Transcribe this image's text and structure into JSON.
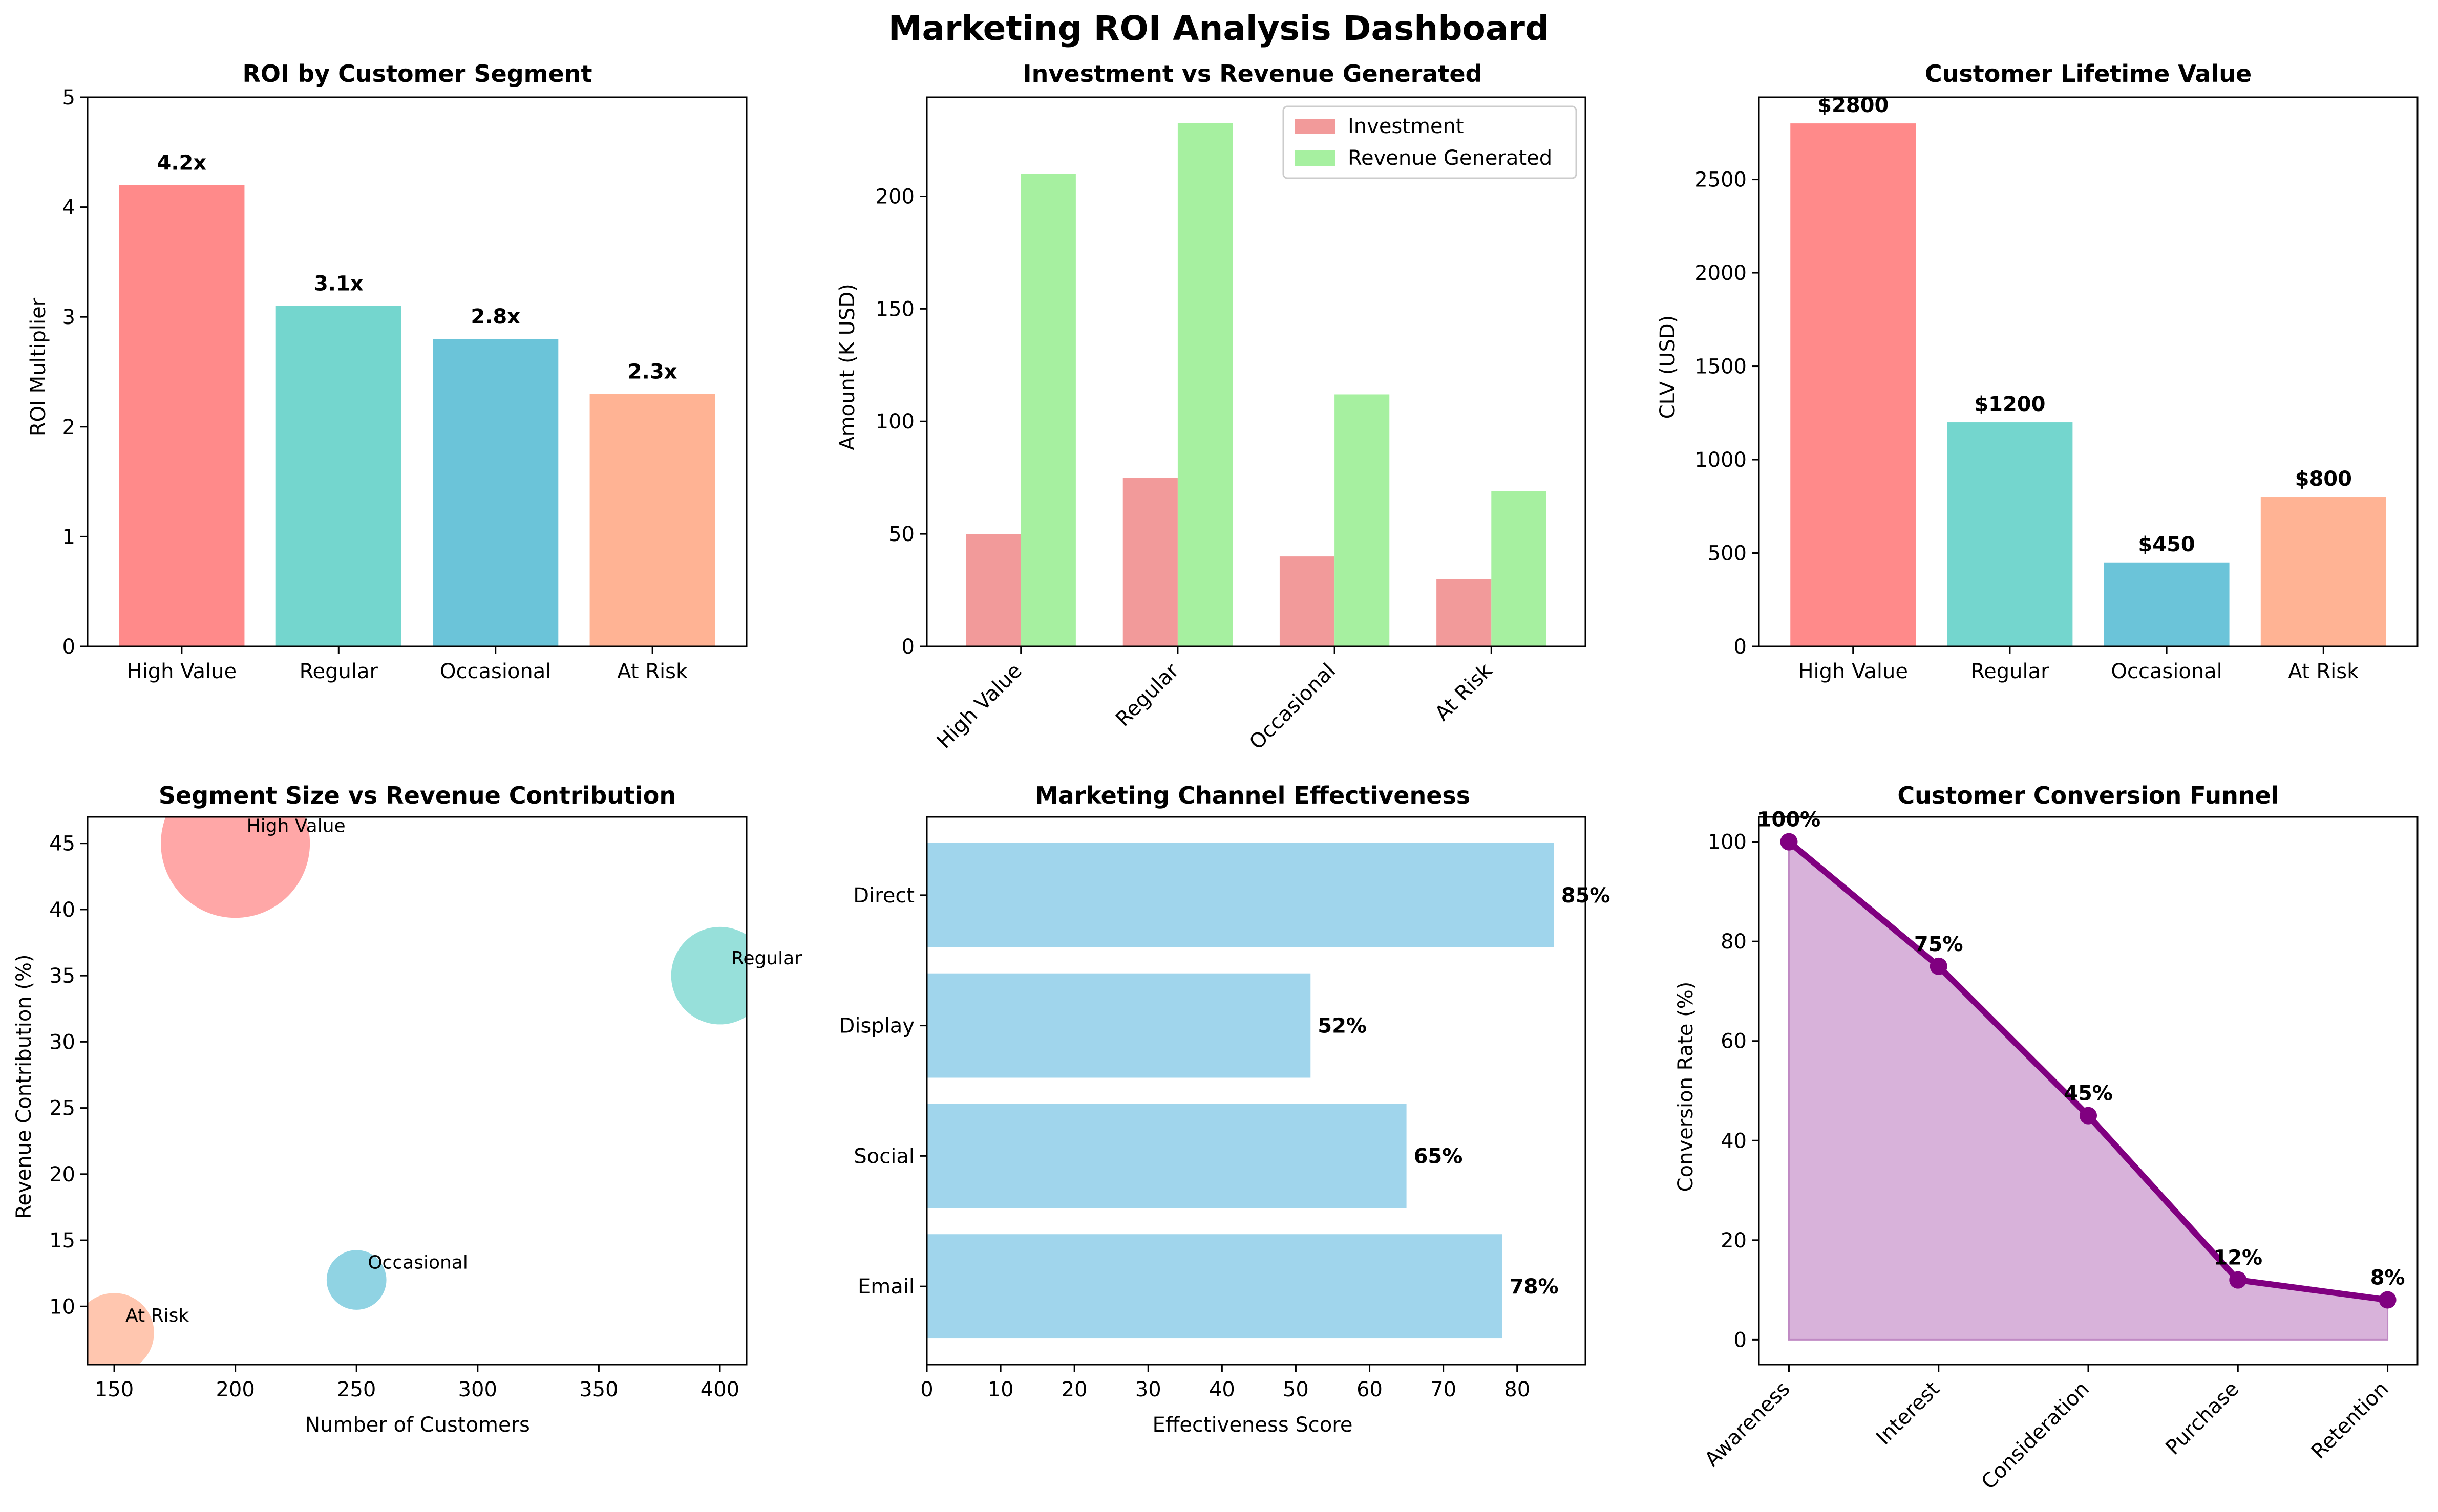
{
  "page_title": "Marketing ROI Analysis Dashboard",
  "chart_data": [
    {
      "id": "roi",
      "type": "bar",
      "title": "ROI by Customer Segment",
      "xlabel": "",
      "ylabel": "ROI Multiplier",
      "categories": [
        "High Value",
        "Regular",
        "Occasional",
        "At Risk"
      ],
      "values": [
        4.2,
        3.1,
        2.8,
        2.3
      ],
      "data_labels": [
        "4.2x",
        "3.1x",
        "2.8x",
        "2.3x"
      ],
      "colors": [
        "#FF8A8A",
        "#74D6CE",
        "#6BC4D9",
        "#FFB394"
      ],
      "ylim": [
        0,
        5
      ],
      "yticks": [
        0,
        1,
        2,
        3,
        4,
        5
      ],
      "grid": false
    },
    {
      "id": "invrev",
      "type": "bar",
      "title": "Investment vs Revenue Generated",
      "xlabel": "",
      "ylabel": "Amount (K USD)",
      "categories": [
        "High Value",
        "Regular",
        "Occasional",
        "At Risk"
      ],
      "series": [
        {
          "name": "Investment",
          "values": [
            50,
            75,
            40,
            30
          ],
          "color": "#F29A9A"
        },
        {
          "name": "Revenue Generated",
          "values": [
            210,
            232.5,
            112,
            69
          ],
          "color": "#A6F0A0"
        }
      ],
      "ylim": [
        0,
        244
      ],
      "yticks": [
        0,
        50,
        100,
        150,
        200
      ],
      "legend": "top-right",
      "grid": false
    },
    {
      "id": "clv",
      "type": "bar",
      "title": "Customer Lifetime Value",
      "xlabel": "",
      "ylabel": "CLV (USD)",
      "categories": [
        "High Value",
        "Regular",
        "Occasional",
        "At Risk"
      ],
      "values": [
        2800,
        1200,
        450,
        800
      ],
      "data_labels": [
        "$2800",
        "$1200",
        "$450",
        "$800"
      ],
      "colors": [
        "#FF8A8A",
        "#74D6CE",
        "#6BC4D9",
        "#FFB394"
      ],
      "ylim": [
        0,
        2940
      ],
      "yticks": [
        0,
        500,
        1000,
        1500,
        2000,
        2500
      ],
      "grid": false
    },
    {
      "id": "bubble",
      "type": "scatter",
      "title": "Segment Size vs Revenue Contribution",
      "xlabel": "Number of Customers",
      "ylabel": "Revenue Contribution (%)",
      "points": [
        {
          "label": "High Value",
          "x": 200,
          "y": 45,
          "size": 2800,
          "color": "#FF8A8A"
        },
        {
          "label": "Regular",
          "x": 400,
          "y": 35,
          "size": 1200,
          "color": "#74D6CE"
        },
        {
          "label": "Occasional",
          "x": 250,
          "y": 12,
          "size": 450,
          "color": "#6BC4D9"
        },
        {
          "label": "At Risk",
          "x": 150,
          "y": 8,
          "size": 800,
          "color": "#FFB394"
        }
      ],
      "xlim": [
        139,
        411
      ],
      "ylim": [
        5.6,
        47
      ],
      "xticks": [
        150,
        200,
        250,
        300,
        350,
        400
      ],
      "yticks": [
        10,
        15,
        20,
        25,
        30,
        35,
        40,
        45
      ],
      "grid": false
    },
    {
      "id": "channel",
      "type": "bar",
      "orientation": "horizontal",
      "title": "Marketing Channel Effectiveness",
      "xlabel": "Effectiveness Score",
      "ylabel": "",
      "categories": [
        "Email",
        "Social",
        "Display",
        "Direct"
      ],
      "values": [
        78,
        65,
        52,
        85
      ],
      "data_labels": [
        "78%",
        "65%",
        "52%",
        "85%"
      ],
      "color": "#A0D5EC",
      "xlim": [
        0,
        89.25
      ],
      "xticks": [
        0,
        10,
        20,
        30,
        40,
        50,
        60,
        70,
        80
      ],
      "grid": false
    },
    {
      "id": "funnel",
      "type": "area",
      "title": "Customer Conversion Funnel",
      "xlabel": "",
      "ylabel": "Conversion Rate (%)",
      "categories": [
        "Awareness",
        "Interest",
        "Consideration",
        "Purchase",
        "Retention"
      ],
      "values": [
        100,
        75,
        45,
        12,
        8
      ],
      "data_labels": [
        "100%",
        "75%",
        "45%",
        "12%",
        "8%"
      ],
      "line_color": "#800080",
      "fill_color": "#D8B2DA",
      "ylim": [
        -5,
        105
      ],
      "yticks": [
        0,
        20,
        40,
        60,
        80,
        100
      ],
      "grid": false
    }
  ]
}
